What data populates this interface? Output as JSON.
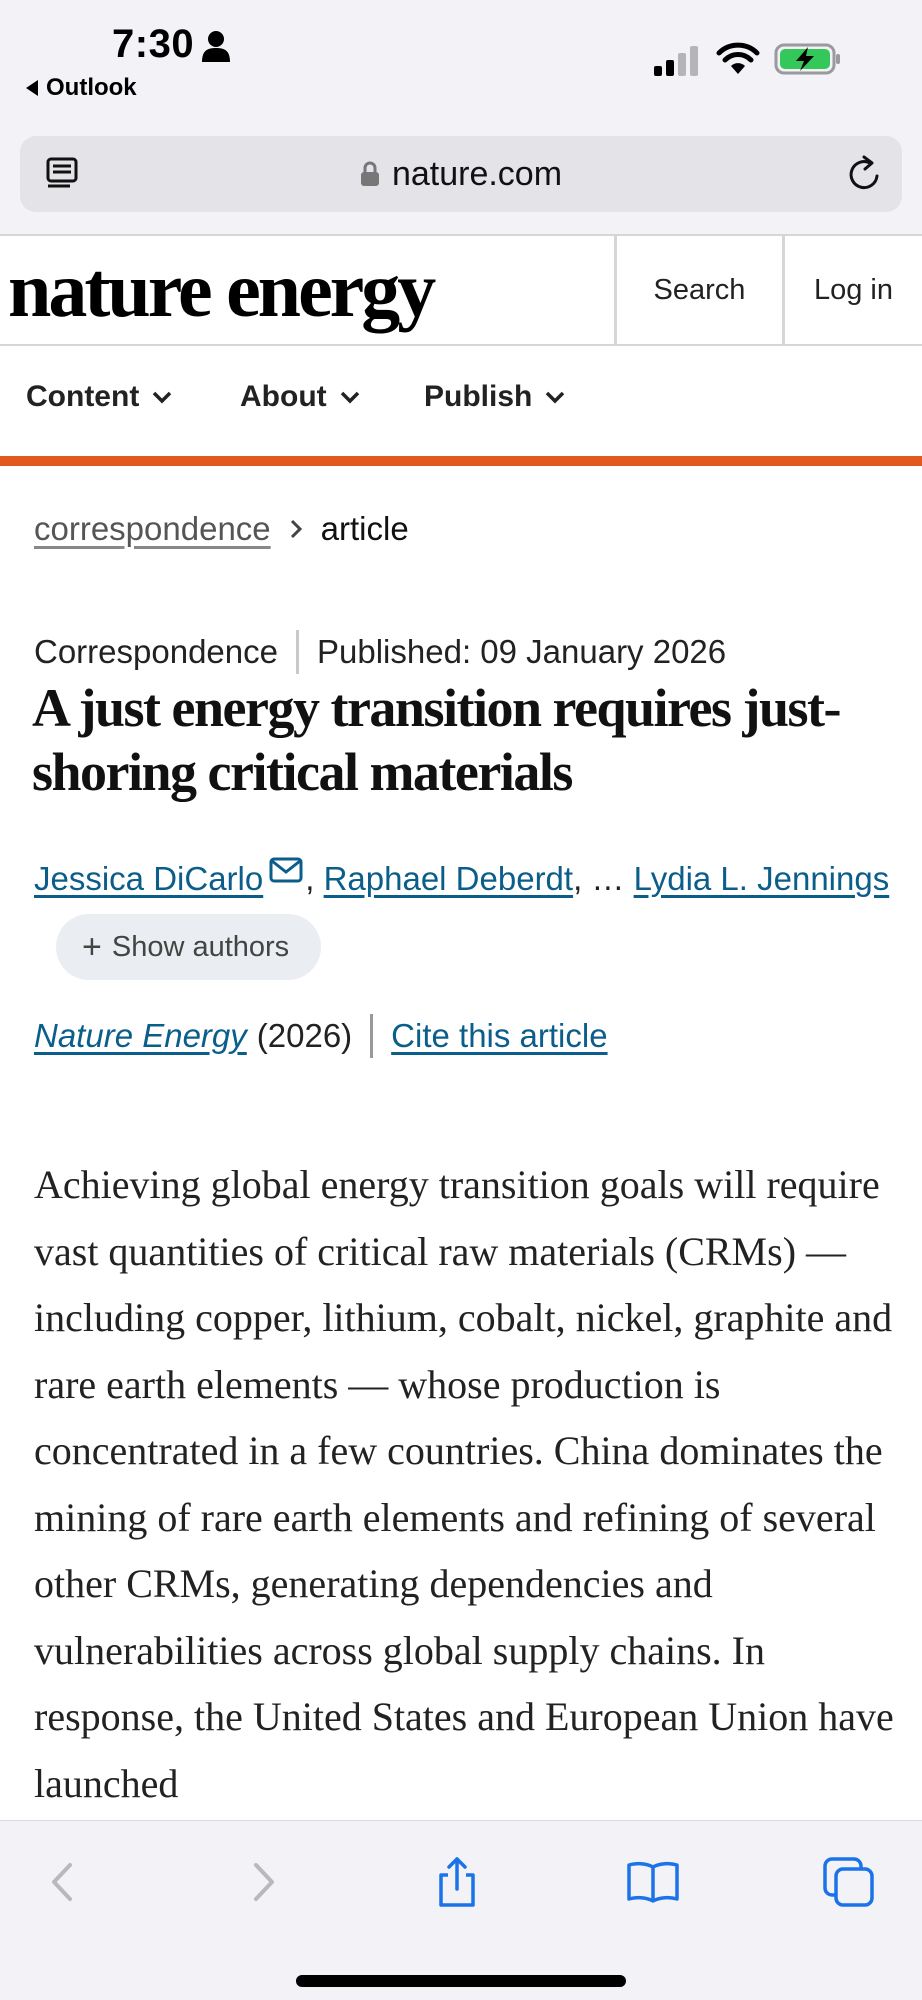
{
  "status_bar": {
    "time": "7:30",
    "back_app": "Outlook",
    "battery_color": "#34c759"
  },
  "browser": {
    "url": "nature.com"
  },
  "site": {
    "logo": "nature energy",
    "search_label": "Search",
    "login_label": "Log in",
    "accent_color": "#e1591e",
    "nav": [
      {
        "label": "Content"
      },
      {
        "label": "About"
      },
      {
        "label": "Publish"
      }
    ]
  },
  "breadcrumb": {
    "parent": "correspondence",
    "current": "article"
  },
  "article": {
    "type": "Correspondence",
    "published": "Published: 09 January 2026",
    "title": "A just energy transition requires just-shoring critical materials",
    "authors": {
      "first": "Jessica DiCarlo",
      "second": "Raphael Deberdt",
      "ellipsis": "…",
      "last": "Lydia L. Jennings",
      "show_authors": "Show authors"
    },
    "journal": "Nature Energy",
    "year": "(2026)",
    "cite": "Cite this article",
    "abstract": "Achieving global energy transition goals will require vast quantities of critical raw materials (CRMs) — including copper, lithium, cobalt, nickel, graphite and rare earth elements — whose production is concentrated in a few countries. China dominates the mining of rare earth elements and refining of several other CRMs, generating dependencies and vulnerabilities across global supply chains. In response, the United States and European Union have launched"
  },
  "toolbar": {
    "icons": [
      "back-icon",
      "forward-icon",
      "share-icon",
      "bookmarks-icon",
      "tabs-icon"
    ]
  }
}
